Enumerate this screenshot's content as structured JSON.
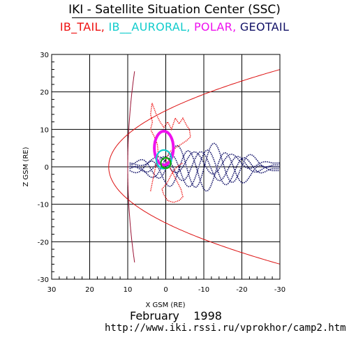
{
  "chart_data": {
    "type": "line",
    "title": "IKI - Satellite Situation Center (SSC)",
    "legend": [
      {
        "label": "IB_TAIL,",
        "color": "#ee1111"
      },
      {
        "label": "IB__AURORAL,",
        "color": "#11cccc"
      },
      {
        "label": "POLAR,",
        "color": "#ee11ee"
      },
      {
        "label": "GEOTAIL",
        "color": "#111166"
      }
    ],
    "xlabel": "X GSM (RE)",
    "ylabel": "Z GSM (RE)",
    "xlim": [
      30,
      -30
    ],
    "ylim": [
      -30,
      30
    ],
    "xticks": [
      30,
      20,
      10,
      0,
      -10,
      -20,
      -30
    ],
    "yticks": [
      30,
      20,
      10,
      0,
      -10,
      -20,
      -30
    ],
    "xtick_labels": [
      "30",
      "20",
      "10",
      "0",
      "-10",
      "-20",
      "-30"
    ],
    "ytick_labels": [
      "30",
      "20",
      "10",
      "0",
      "-10",
      "-20",
      "-30"
    ],
    "grid": true,
    "boundaries": [
      {
        "name": "bow shock",
        "color": "#dd1111",
        "vertex_x": 15,
        "flare": 0.0667,
        "z_range": [
          -30,
          30
        ]
      },
      {
        "name": "magnetopause",
        "color": "#991133",
        "vertex_x": 10,
        "flare": 0.00277,
        "z_range": [
          -25.5,
          25.5
        ]
      }
    ],
    "series": [
      {
        "color": "#1a1a6e",
        "style": "dotted-orbits",
        "orbits": [
          {
            "x_min": -30,
            "x_max": 9.5,
            "z_center": 0.5,
            "z_amp": 6.0
          },
          {
            "x_min": -30,
            "x_max": 9.5,
            "z_center": -0.5,
            "z_amp": 5.0
          },
          {
            "x_min": -30,
            "x_max": 9.5,
            "z_center": 0.0,
            "z_amp": 4.0
          },
          {
            "x_min": -30,
            "x_max": 9.5,
            "z_center": 1.0,
            "z_amp": 3.0
          },
          {
            "x_min": -30,
            "x_max": 9.5,
            "z_center": -1.0,
            "z_amp": 5.5
          }
        ]
      },
      {
        "color": "#ee1111",
        "style": "dotted-track",
        "points": [
          [
            4,
            -6.5
          ],
          [
            3.5,
            -4
          ],
          [
            3,
            -1.5
          ],
          [
            2.5,
            1
          ],
          [
            2,
            3.5
          ],
          [
            2.2,
            6
          ],
          [
            3,
            8
          ],
          [
            4,
            10
          ],
          [
            3.5,
            12
          ],
          [
            4,
            14
          ],
          [
            3.6,
            17
          ],
          [
            2.5,
            14
          ],
          [
            1.5,
            12
          ],
          [
            0.5,
            10.5
          ],
          [
            -0.5,
            12
          ],
          [
            -1.5,
            10
          ],
          [
            -2.5,
            13
          ],
          [
            -3.5,
            11.5
          ],
          [
            -4.5,
            13
          ],
          [
            -5.5,
            11
          ],
          [
            -6.2,
            10
          ],
          [
            -6.5,
            8
          ],
          [
            -5.5,
            7
          ],
          [
            -4,
            6
          ],
          [
            -2.5,
            5
          ],
          [
            -1,
            4
          ],
          [
            0,
            2
          ],
          [
            -1,
            0
          ],
          [
            -2,
            -2
          ],
          [
            -3,
            -4
          ],
          [
            -4,
            -6
          ],
          [
            -4.5,
            -8
          ],
          [
            -3.5,
            -9
          ],
          [
            -2,
            -9.5
          ],
          [
            -0.5,
            -9
          ],
          [
            0.5,
            -7.5
          ],
          [
            1,
            -6
          ],
          [
            -0.5,
            -4
          ],
          [
            -1.5,
            -2
          ],
          [
            -2.5,
            -0.5
          ],
          [
            -3.5,
            0.5
          ],
          [
            -4.5,
            1
          ]
        ]
      },
      {
        "color": "#ee11ee",
        "style": "loop",
        "center": [
          0.5,
          5
        ],
        "rx": 2.5,
        "rz": 4.5
      },
      {
        "color": "#11cccc",
        "style": "loop",
        "center": [
          0.5,
          2
        ],
        "rx": 2.0,
        "rz": 2.5
      },
      {
        "color": "#11aa11",
        "style": "loop",
        "center": [
          0,
          1
        ],
        "rx": 1.3,
        "rz": 1.4
      }
    ]
  },
  "footer": {
    "date": "February    1998",
    "url": "http://www.iki.rssi.ru/vprokhor/camp2.htm"
  }
}
